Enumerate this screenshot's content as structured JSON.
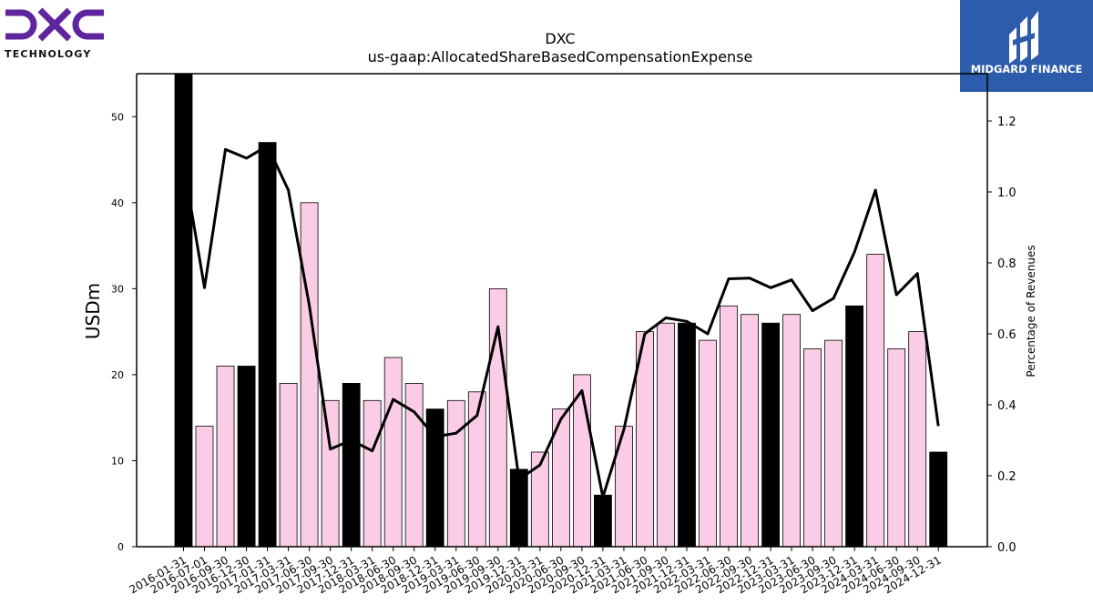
{
  "brand": {
    "left_logo_text": "DXC",
    "left_logo_subtext": "TECHNOLOGY",
    "right_logo_text": "MIDGARD FINANCE",
    "left_logo_color": "#5f259f",
    "right_logo_bg": "#2c5cab"
  },
  "chart_data": {
    "type": "bar",
    "title": "DXC",
    "subtitle": "us-gaap:AllocatedShareBasedCompensationExpense",
    "ylabel": "USDm",
    "y2label": "Percentage of Revenues",
    "ylim": [
      0,
      55
    ],
    "y2lim": [
      0,
      1.3333
    ],
    "yticks": [
      0,
      10,
      20,
      30,
      40,
      50
    ],
    "y2ticks": [
      "0.0",
      "0.2",
      "0.4",
      "0.6",
      "0.8",
      "1.0",
      "1.2"
    ],
    "categories": [
      "2016-01-31",
      "2016-07-01",
      "2016-09-30",
      "2016-12-30",
      "2017-01-31",
      "2017-03-31",
      "2017-06-30",
      "2017-09-30",
      "2017-12-31",
      "2018-03-31",
      "2018-06-30",
      "2018-09-30",
      "2018-12-31",
      "2019-03-31",
      "2019-06-30",
      "2019-09-30",
      "2019-12-31",
      "2020-03-31",
      "2020-06-30",
      "2020-09-30",
      "2020-12-31",
      "2021-03-31",
      "2021-06-30",
      "2021-09-30",
      "2021-12-31",
      "2022-03-31",
      "2022-06-30",
      "2022-09-30",
      "2022-12-31",
      "2023-03-31",
      "2023-06-30",
      "2023-09-30",
      "2023-12-31",
      "2024-03-31",
      "2024-06-30",
      "2024-09-30",
      "2024-12-31"
    ],
    "series": [
      {
        "kind": "bar",
        "values": [
          55,
          14,
          21,
          21,
          47,
          19,
          40,
          17,
          19,
          17,
          22,
          19,
          16,
          17,
          18,
          30,
          9,
          11,
          16,
          20,
          6,
          14,
          25,
          26,
          26,
          24,
          28,
          27,
          26,
          27,
          23,
          24,
          28,
          34,
          23,
          25,
          11
        ],
        "highlight": [
          true,
          false,
          false,
          true,
          true,
          false,
          false,
          false,
          true,
          false,
          false,
          false,
          true,
          false,
          false,
          false,
          true,
          false,
          false,
          false,
          true,
          false,
          false,
          false,
          true,
          false,
          false,
          false,
          true,
          false,
          false,
          false,
          true,
          false,
          false,
          false,
          true
        ],
        "color": "#fbcce6",
        "highlight_color": "#000000"
      },
      {
        "kind": "line",
        "axis": "right",
        "values": [
          1.08,
          0.73,
          1.12,
          1.095,
          1.13,
          1.005,
          0.68,
          0.275,
          0.3,
          0.27,
          0.415,
          0.38,
          0.31,
          0.32,
          0.37,
          0.62,
          0.19,
          0.23,
          0.36,
          0.44,
          0.14,
          0.33,
          0.6,
          0.645,
          0.635,
          0.6,
          0.755,
          0.757,
          0.73,
          0.752,
          0.665,
          0.7,
          0.83,
          1.005,
          0.71,
          0.77,
          0.34
        ],
        "color": "#000000"
      }
    ],
    "grid": false
  }
}
